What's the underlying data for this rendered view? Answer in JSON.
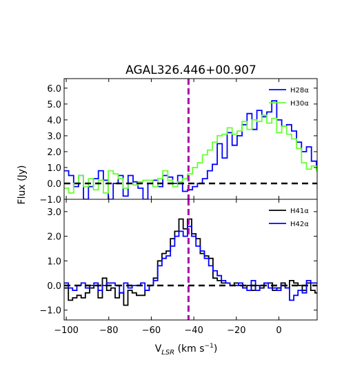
{
  "chart_data": [
    {
      "type": "line",
      "title": "AGAL326.446+00.907",
      "xlabel": "V_LSR (km s^-1)",
      "ylabel": "Flux (Jy)",
      "xlim": [
        -101,
        18
      ],
      "ylim": [
        -1.0,
        6.6
      ],
      "yticks": [
        -1.0,
        0.0,
        1.0,
        2.0,
        3.0,
        4.0,
        5.0,
        6.0
      ],
      "ytick_labels": [
        "−1.0",
        "0.0",
        "1.0",
        "2.0",
        "3.0",
        "4.0",
        "5.0",
        "6.0"
      ],
      "legend_position": "top-right",
      "zero_line": 0.0,
      "marker_velocity": -42.5,
      "series": [
        {
          "name": "H28α",
          "color": "#0000ff",
          "step": 2.33,
          "x_start": -101.2,
          "values": [
            0.8,
            0.5,
            -0.2,
            0.5,
            -1.0,
            -0.2,
            0.3,
            0.8,
            0.2,
            -1.0,
            0.0,
            0.5,
            -0.8,
            0.5,
            0.1,
            -0.3,
            -1.0,
            0.0,
            0.2,
            -0.2,
            0.5,
            0.4,
            0.0,
            0.5,
            -0.5,
            -0.4,
            -0.2,
            0.0,
            0.3,
            0.8,
            1.2,
            2.5,
            1.6,
            3.2,
            2.4,
            3.0,
            3.7,
            4.4,
            3.4,
            4.6,
            4.2,
            4.5,
            5.2,
            4.0,
            3.6,
            3.7,
            3.3,
            2.6,
            2.0,
            2.3,
            1.4,
            1.0,
            0.8,
            0.5,
            0.9,
            0.6,
            0.4,
            0.0,
            0.2,
            0.8,
            0.3,
            0.9,
            0.2,
            -0.7,
            0.3,
            -0.1,
            0.0,
            -0.5,
            0.1,
            0.2,
            -0.1,
            0.8,
            -0.3,
            0.3,
            0.8,
            0.6
          ]
        },
        {
          "name": "H30α",
          "color": "#66ff33",
          "step": 2.33,
          "x_start": -101.2,
          "values": [
            -0.3,
            -0.6,
            0.0,
            0.5,
            -0.2,
            0.3,
            -0.4,
            0.2,
            -0.6,
            0.8,
            0.6,
            0.3,
            -0.3,
            0.0,
            -0.1,
            0.1,
            0.2,
            0.2,
            -0.2,
            0.3,
            0.8,
            0.2,
            -0.2,
            0.1,
            0.3,
            0.6,
            1.0,
            1.3,
            1.8,
            2.1,
            2.6,
            3.0,
            3.1,
            3.5,
            3.1,
            3.3,
            3.9,
            3.4,
            4.0,
            3.9,
            4.3,
            3.8,
            4.1,
            3.2,
            3.6,
            3.1,
            2.8,
            2.2,
            1.3,
            0.9,
            1.1,
            0.8,
            1.0,
            0.9,
            0.3,
            0.5,
            0.8,
            0.2,
            0.4,
            0.9,
            0.7,
            -0.1,
            0.3,
            0.2,
            0.1,
            -0.3,
            -0.1,
            0.5,
            -0.2,
            -0.2,
            0.3,
            0.4,
            0.2,
            0.5,
            0.3,
            -0.1
          ]
        }
      ]
    },
    {
      "type": "line",
      "title": "",
      "xlabel": "V_LSR (km s^-1)",
      "ylabel": "Flux (Jy)",
      "xlim": [
        -101,
        18
      ],
      "ylim": [
        -1.4,
        3.5
      ],
      "yticks": [
        -1.0,
        0.0,
        1.0,
        2.0,
        3.0
      ],
      "ytick_labels": [
        "−1.0",
        "0.0",
        "1.0",
        "2.0",
        "3.0"
      ],
      "xticks": [
        -100,
        -80,
        -60,
        -40,
        -20,
        0
      ],
      "xtick_labels": [
        "−100",
        "−80",
        "−60",
        "−40",
        "−20",
        "0"
      ],
      "legend_position": "top-right",
      "zero_line": 0.0,
      "marker_velocity": -42.5,
      "series": [
        {
          "name": "H41α",
          "color": "#000000",
          "step": 2.0,
          "x_start": -101.0,
          "values": [
            -0.1,
            -0.6,
            -0.5,
            -0.4,
            -0.5,
            -0.3,
            -0.1,
            0.0,
            -0.5,
            0.3,
            -0.2,
            -0.1,
            -0.5,
            -0.3,
            -0.8,
            -0.2,
            -0.3,
            -0.4,
            -0.4,
            -0.2,
            0.0,
            0.3,
            1.0,
            1.3,
            1.4,
            1.9,
            2.2,
            2.7,
            2.3,
            2.7,
            2.1,
            1.9,
            1.3,
            1.2,
            1.1,
            0.3,
            0.2,
            0.1,
            0.1,
            0.0,
            0.1,
            0.0,
            -0.1,
            0.0,
            -0.2,
            0.0,
            -0.1,
            0.1,
            0.1,
            -0.2,
            -0.1,
            0.1,
            -0.1,
            0.2,
            0.1,
            0.0,
            -0.2,
            0.1,
            -0.2,
            -0.3
          ]
        },
        {
          "name": "H42α",
          "color": "#0000ff",
          "step": 2.0,
          "x_start": -101.0,
          "values": [
            0.1,
            -0.1,
            -0.2,
            0.0,
            0.1,
            -0.1,
            0.0,
            0.1,
            -0.2,
            0.0,
            0.1,
            0.1,
            0.0,
            -0.3,
            0.1,
            -0.1,
            0.0,
            0.0,
            0.1,
            -0.2,
            0.0,
            0.2,
            0.8,
            1.1,
            1.2,
            1.6,
            2.0,
            2.2,
            2.0,
            2.4,
            2.0,
            1.6,
            1.4,
            1.1,
            0.8,
            0.6,
            0.4,
            0.2,
            0.1,
            0.0,
            0.0,
            0.1,
            -0.1,
            -0.2,
            0.2,
            -0.2,
            0.0,
            0.1,
            -0.1,
            -0.1,
            -0.2,
            0.0,
            -0.1,
            -0.6,
            -0.4,
            -0.2,
            -0.3,
            0.2,
            0.1,
            0.1
          ]
        }
      ]
    }
  ]
}
